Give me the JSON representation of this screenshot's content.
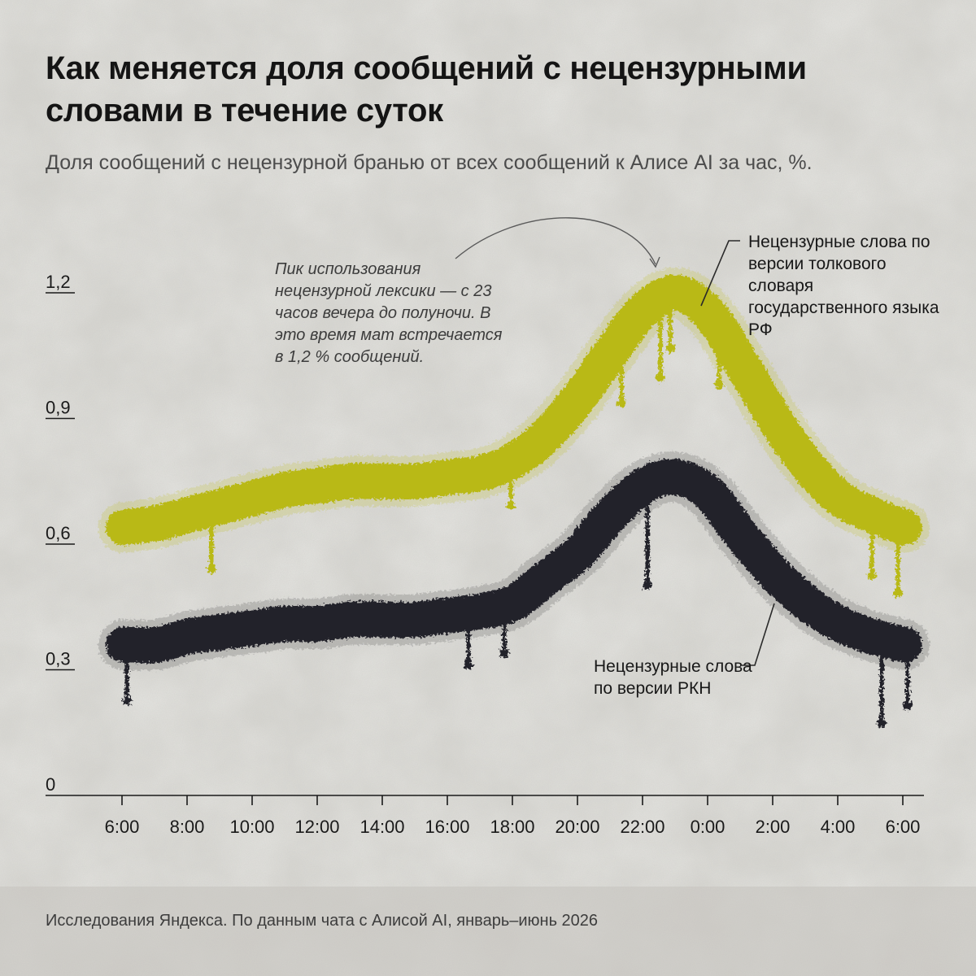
{
  "header": {
    "title": "Как меняется доля сообщений с нецензурными словами в течение суток",
    "subtitle": "Доля сообщений с нецензурной бранью от всех сообщений к Алисе AI за час, %."
  },
  "annotation": "Пик использования нецензурной лексики — с 23 часов вечера до полуночи. В это время мат встречается в 1,2 % сообщений.",
  "footer": {
    "source": "Исследования Яндекса. По данным чата с Алисой AI, январь–июнь 2026"
  },
  "colors": {
    "dictionary_series": "#b9b916",
    "rkn_series": "#23212b",
    "background": "#d9d8d3",
    "text": "#141414"
  },
  "chart_data": {
    "type": "line",
    "x_hours": [
      6,
      7,
      8,
      9,
      10,
      11,
      12,
      13,
      14,
      15,
      16,
      17,
      18,
      19,
      20,
      21,
      22,
      23,
      24,
      25,
      26,
      27,
      28,
      29,
      30
    ],
    "x_tick_labels": [
      "6:00",
      "8:00",
      "10:00",
      "12:00",
      "14:00",
      "16:00",
      "18:00",
      "20:00",
      "22:00",
      "0:00",
      "2:00",
      "4:00",
      "6:00"
    ],
    "x_tick_hours": [
      6,
      8,
      10,
      12,
      14,
      16,
      18,
      20,
      22,
      24,
      26,
      28,
      30
    ],
    "y_ticks": [
      0,
      0.3,
      0.6,
      0.9,
      1.2
    ],
    "y_tick_labels": [
      "0",
      "0,3",
      "0,6",
      "0,9",
      "1,2"
    ],
    "ylim": [
      0,
      1.3
    ],
    "xlim": [
      5,
      31
    ],
    "series": [
      {
        "name": "Нецензурные слова по версии толкового словаря государственного языка РФ",
        "color": "#b9b916",
        "values": [
          0.64,
          0.65,
          0.67,
          0.69,
          0.71,
          0.73,
          0.74,
          0.75,
          0.75,
          0.75,
          0.76,
          0.77,
          0.8,
          0.86,
          0.95,
          1.06,
          1.16,
          1.2,
          1.15,
          1.03,
          0.9,
          0.79,
          0.71,
          0.67,
          0.64
        ]
      },
      {
        "name": "Нецензурные слова по версии РКН",
        "color": "#23212b",
        "values": [
          0.36,
          0.36,
          0.38,
          0.39,
          0.4,
          0.41,
          0.41,
          0.42,
          0.42,
          0.42,
          0.43,
          0.44,
          0.46,
          0.52,
          0.58,
          0.67,
          0.74,
          0.76,
          0.72,
          0.62,
          0.53,
          0.46,
          0.41,
          0.38,
          0.36
        ]
      }
    ]
  }
}
